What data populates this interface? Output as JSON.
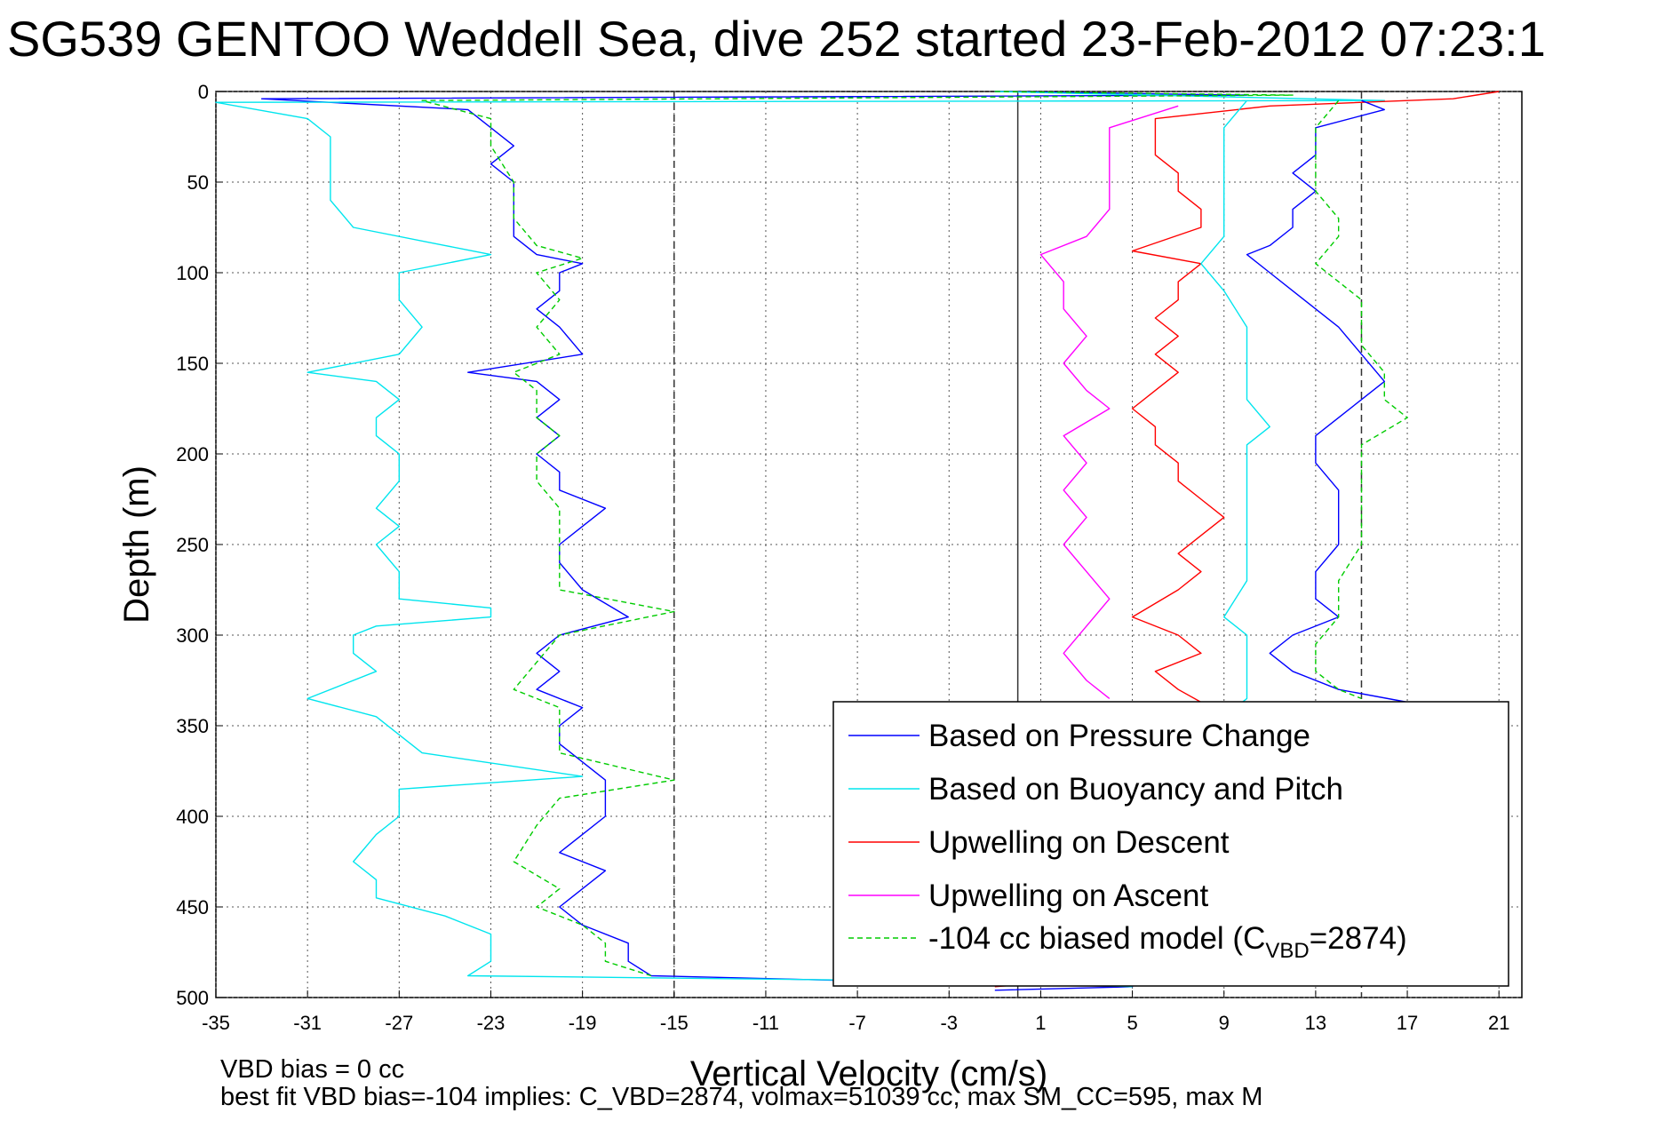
{
  "title": "SG539 GENTOO Weddell Sea, dive 252 started 23-Feb-2012 07:23:1",
  "footer": {
    "line1": "VBD bias = 0 cc",
    "line2": "best fit VBD bias=-104 implies: C_VBD=2874, volmax=51039 cc, max SM_CC=595, max M"
  },
  "chart_data": {
    "type": "line",
    "title": "SG539 GENTOO Weddell Sea, dive 252 started 23-Feb-2012 07:23:1",
    "xlabel": "Vertical Velocity (cm/s)",
    "ylabel": "Depth (m)",
    "xlim": [
      -35,
      22
    ],
    "ylim": [
      0,
      500
    ],
    "y_reversed": true,
    "grid": true,
    "xticks": [
      -35,
      -31,
      -27,
      -23,
      -19,
      -15,
      -11,
      -7,
      -3,
      1,
      5,
      9,
      13,
      17,
      21
    ],
    "yticks": [
      0,
      50,
      100,
      150,
      200,
      250,
      300,
      350,
      400,
      450,
      500
    ],
    "reference_lines": [
      {
        "x": -15,
        "style": "dashed"
      },
      {
        "x": 0,
        "style": "solid"
      },
      {
        "x": 15,
        "style": "dashed"
      }
    ],
    "legend": {
      "position": "lower-right",
      "entries": [
        {
          "label": "Based on Pressure Change",
          "series": 0
        },
        {
          "label": "Based on Buoyancy and Pitch",
          "series": 1
        },
        {
          "label": "Upwelling on Descent",
          "series": 2
        },
        {
          "label": "Upwelling on Ascent",
          "series": 3
        },
        {
          "label": "-104 cc biased model (C",
          "sub": "VBD",
          "suffix": "=2874)",
          "series": 4
        }
      ]
    },
    "series": [
      {
        "name": "Based on Pressure Change",
        "color": "#0000ff",
        "dash": "",
        "points": [
          [
            -1,
            0
          ],
          [
            10,
            2
          ],
          [
            -33,
            4
          ],
          [
            -24,
            10
          ],
          [
            -23,
            20
          ],
          [
            -22,
            30
          ],
          [
            -23,
            40
          ],
          [
            -22,
            50
          ],
          [
            -22,
            60
          ],
          [
            -22,
            70
          ],
          [
            -22,
            80
          ],
          [
            -21,
            90
          ],
          [
            -19,
            95
          ],
          [
            -20,
            100
          ],
          [
            -20,
            110
          ],
          [
            -21,
            120
          ],
          [
            -20,
            130
          ],
          [
            -19,
            145
          ],
          [
            -24,
            155
          ],
          [
            -21,
            160
          ],
          [
            -20,
            170
          ],
          [
            -21,
            180
          ],
          [
            -20,
            190
          ],
          [
            -21,
            200
          ],
          [
            -20,
            210
          ],
          [
            -20,
            220
          ],
          [
            -18,
            230
          ],
          [
            -19,
            240
          ],
          [
            -20,
            250
          ],
          [
            -20,
            260
          ],
          [
            -19,
            275
          ],
          [
            -17,
            290
          ],
          [
            -20,
            300
          ],
          [
            -21,
            310
          ],
          [
            -20,
            320
          ],
          [
            -21,
            330
          ],
          [
            -19,
            340
          ],
          [
            -20,
            350
          ],
          [
            -20,
            360
          ],
          [
            -19,
            370
          ],
          [
            -18,
            380
          ],
          [
            -18,
            390
          ],
          [
            -18,
            400
          ],
          [
            -19,
            410
          ],
          [
            -20,
            420
          ],
          [
            -18,
            430
          ],
          [
            -19,
            440
          ],
          [
            -20,
            450
          ],
          [
            -19,
            460
          ],
          [
            -17,
            470
          ],
          [
            -17,
            480
          ],
          [
            -16,
            488
          ],
          [
            -3,
            492
          ],
          [
            5,
            494
          ],
          [
            -1,
            496
          ]
        ]
      },
      {
        "name": "Based on Buoyancy and Pitch",
        "color": "#00e5ee",
        "dash": "",
        "points": [
          [
            -1,
            0
          ],
          [
            16,
            5
          ],
          [
            -35,
            6
          ],
          [
            -31,
            15
          ],
          [
            -30,
            25
          ],
          [
            -30,
            40
          ],
          [
            -30,
            50
          ],
          [
            -30,
            60
          ],
          [
            -29,
            75
          ],
          [
            -25,
            85
          ],
          [
            -23,
            90
          ],
          [
            -27,
            100
          ],
          [
            -27,
            115
          ],
          [
            -26,
            130
          ],
          [
            -27,
            145
          ],
          [
            -31,
            155
          ],
          [
            -28,
            160
          ],
          [
            -27,
            170
          ],
          [
            -28,
            180
          ],
          [
            -28,
            190
          ],
          [
            -27,
            200
          ],
          [
            -27,
            215
          ],
          [
            -28,
            230
          ],
          [
            -27,
            240
          ],
          [
            -28,
            250
          ],
          [
            -27,
            265
          ],
          [
            -27,
            280
          ],
          [
            -23,
            285
          ],
          [
            -23,
            290
          ],
          [
            -28,
            295
          ],
          [
            -29,
            300
          ],
          [
            -29,
            310
          ],
          [
            -28,
            320
          ],
          [
            -31,
            335
          ],
          [
            -28,
            345
          ],
          [
            -27,
            355
          ],
          [
            -26,
            365
          ],
          [
            -19,
            378
          ],
          [
            -27,
            385
          ],
          [
            -27,
            400
          ],
          [
            -28,
            410
          ],
          [
            -29,
            425
          ],
          [
            -28,
            435
          ],
          [
            -28,
            445
          ],
          [
            -25,
            455
          ],
          [
            -23,
            465
          ],
          [
            -23,
            480
          ],
          [
            -24,
            488
          ],
          [
            -3,
            491
          ],
          [
            5,
            494
          ]
        ]
      },
      {
        "name": "Upwelling on Descent",
        "color": "#ff0000",
        "dash": "",
        "points": [
          [
            21,
            0
          ],
          [
            19,
            4
          ],
          [
            11,
            8
          ],
          [
            6,
            15
          ],
          [
            6,
            25
          ],
          [
            6,
            35
          ],
          [
            7,
            45
          ],
          [
            7,
            55
          ],
          [
            8,
            65
          ],
          [
            8,
            75
          ],
          [
            5,
            88
          ],
          [
            8,
            95
          ],
          [
            7,
            105
          ],
          [
            7,
            115
          ],
          [
            6,
            125
          ],
          [
            7,
            135
          ],
          [
            6,
            145
          ],
          [
            7,
            155
          ],
          [
            6,
            165
          ],
          [
            5,
            175
          ],
          [
            6,
            185
          ],
          [
            6,
            195
          ],
          [
            7,
            205
          ],
          [
            7,
            215
          ],
          [
            8,
            225
          ],
          [
            9,
            235
          ],
          [
            8,
            245
          ],
          [
            7,
            255
          ],
          [
            8,
            265
          ],
          [
            7,
            275
          ],
          [
            5,
            290
          ],
          [
            7,
            300
          ],
          [
            8,
            310
          ],
          [
            6,
            320
          ],
          [
            7,
            330
          ],
          [
            8,
            337
          ],
          [
            1,
            492
          ],
          [
            -1,
            494
          ]
        ]
      },
      {
        "name": "Upwelling on Ascent",
        "color": "#ff00ff",
        "dash": "",
        "points": [
          [
            7,
            8
          ],
          [
            4,
            20
          ],
          [
            4,
            35
          ],
          [
            4,
            50
          ],
          [
            4,
            65
          ],
          [
            3,
            80
          ],
          [
            1,
            90
          ],
          [
            2,
            105
          ],
          [
            2,
            120
          ],
          [
            3,
            135
          ],
          [
            2,
            150
          ],
          [
            3,
            165
          ],
          [
            4,
            175
          ],
          [
            2,
            190
          ],
          [
            3,
            205
          ],
          [
            2,
            220
          ],
          [
            3,
            235
          ],
          [
            2,
            250
          ],
          [
            3,
            265
          ],
          [
            4,
            280
          ],
          [
            3,
            295
          ],
          [
            2,
            310
          ],
          [
            3,
            325
          ],
          [
            4,
            335
          ]
        ]
      },
      {
        "name": "-104 cc biased model (CVBD=2874)",
        "color": "#00cc00",
        "dash": "6,4",
        "points": [
          [
            -1,
            0
          ],
          [
            12,
            2
          ],
          [
            -26,
            5
          ],
          [
            -23,
            15
          ],
          [
            -23,
            30
          ],
          [
            -22,
            50
          ],
          [
            -22,
            70
          ],
          [
            -21,
            85
          ],
          [
            -19,
            92
          ],
          [
            -21,
            100
          ],
          [
            -20,
            115
          ],
          [
            -21,
            130
          ],
          [
            -20,
            145
          ],
          [
            -22,
            155
          ],
          [
            -21,
            165
          ],
          [
            -21,
            180
          ],
          [
            -20,
            190
          ],
          [
            -21,
            200
          ],
          [
            -21,
            215
          ],
          [
            -20,
            230
          ],
          [
            -20,
            245
          ],
          [
            -20,
            260
          ],
          [
            -20,
            275
          ],
          [
            -15,
            287
          ],
          [
            -20,
            300
          ],
          [
            -21,
            315
          ],
          [
            -22,
            330
          ],
          [
            -20,
            340
          ],
          [
            -20,
            350
          ],
          [
            -20,
            365
          ],
          [
            -15,
            380
          ],
          [
            -20,
            390
          ],
          [
            -21,
            405
          ],
          [
            -22,
            425
          ],
          [
            -20,
            440
          ],
          [
            -21,
            450
          ],
          [
            -19,
            460
          ],
          [
            -18,
            470
          ],
          [
            -18,
            480
          ],
          [
            -16,
            488
          ]
        ]
      },
      {
        "name": "Based on Pressure Change (ascent)",
        "color": "#0000ff",
        "dash": "",
        "points": [
          [
            15,
            5
          ],
          [
            16,
            10
          ],
          [
            13,
            20
          ],
          [
            13,
            35
          ],
          [
            12,
            45
          ],
          [
            13,
            55
          ],
          [
            12,
            65
          ],
          [
            12,
            75
          ],
          [
            11,
            85
          ],
          [
            10,
            90
          ],
          [
            11,
            100
          ],
          [
            12,
            110
          ],
          [
            13,
            120
          ],
          [
            14,
            130
          ],
          [
            15,
            145
          ],
          [
            16,
            160
          ],
          [
            15,
            170
          ],
          [
            14,
            180
          ],
          [
            13,
            190
          ],
          [
            13,
            205
          ],
          [
            14,
            220
          ],
          [
            14,
            235
          ],
          [
            14,
            250
          ],
          [
            13,
            265
          ],
          [
            13,
            280
          ],
          [
            14,
            290
          ],
          [
            12,
            300
          ],
          [
            11,
            310
          ],
          [
            12,
            320
          ],
          [
            14,
            330
          ],
          [
            17,
            337
          ]
        ]
      },
      {
        "name": "Based on Buoyancy and Pitch (ascent)",
        "color": "#00e5ee",
        "dash": "",
        "points": [
          [
            10,
            5
          ],
          [
            9,
            20
          ],
          [
            9,
            40
          ],
          [
            9,
            60
          ],
          [
            9,
            80
          ],
          [
            8,
            95
          ],
          [
            9,
            110
          ],
          [
            10,
            130
          ],
          [
            10,
            150
          ],
          [
            10,
            170
          ],
          [
            11,
            185
          ],
          [
            10,
            195
          ],
          [
            10,
            210
          ],
          [
            10,
            230
          ],
          [
            10,
            250
          ],
          [
            10,
            270
          ],
          [
            9,
            290
          ],
          [
            10,
            300
          ],
          [
            10,
            320
          ],
          [
            10,
            335
          ],
          [
            9,
            345
          ]
        ]
      },
      {
        "name": "-104 cc biased model (ascent)",
        "color": "#00cc00",
        "dash": "6,4",
        "points": [
          [
            14,
            5
          ],
          [
            13,
            20
          ],
          [
            13,
            40
          ],
          [
            13,
            55
          ],
          [
            14,
            70
          ],
          [
            14,
            80
          ],
          [
            13,
            95
          ],
          [
            14,
            105
          ],
          [
            15,
            115
          ],
          [
            15,
            125
          ],
          [
            15,
            140
          ],
          [
            16,
            155
          ],
          [
            16,
            170
          ],
          [
            17,
            180
          ],
          [
            15,
            195
          ],
          [
            15,
            210
          ],
          [
            15,
            230
          ],
          [
            15,
            250
          ],
          [
            14,
            270
          ],
          [
            14,
            290
          ],
          [
            13,
            305
          ],
          [
            13,
            320
          ],
          [
            14,
            330
          ],
          [
            15,
            335
          ]
        ]
      }
    ]
  }
}
